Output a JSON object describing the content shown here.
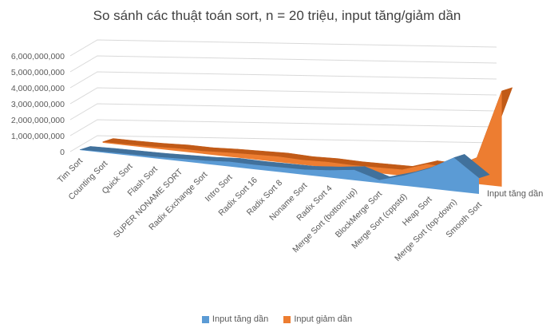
{
  "chart_data": {
    "type": "area",
    "title": "So sánh các thuật toán sort, n = 20 triệu, input tăng/giảm dần",
    "categories": [
      "Tim Sort",
      "Counting Sort",
      "Quick Sort",
      "Flash Sort",
      "SUPER NONAME SORT",
      "Radix Exchange Sort",
      "Intro Sort",
      "Radix Sort 16",
      "Radix Sort 8",
      "Noname Sort",
      "Radix Sort 4",
      "Merge Sort (bottom-up)",
      "BlockMerge Sort",
      "Merge Sort (cppstd)",
      "Heap Sort",
      "Merge Sort (top-down)",
      "Smooth Sort"
    ],
    "y_ticks": [
      "0",
      "1,000,000,000",
      "2,000,000,000",
      "3,000,000,000",
      "4,000,000,000",
      "5,000,000,000",
      "6,000,000,000"
    ],
    "ylim": [
      0,
      6000000000
    ],
    "series": [
      {
        "name": "Input tăng dần",
        "color": "#5b9bd5",
        "values": [
          20000000,
          60000000,
          80000000,
          100000000,
          150000000,
          200000000,
          300000000,
          280000000,
          300000000,
          320000000,
          450000000,
          650000000,
          180000000,
          650000000,
          1250000000,
          2100000000,
          1000000000
        ]
      },
      {
        "name": "Input giảm dần",
        "color": "#ed7d31",
        "values": [
          60000000,
          70000000,
          100000000,
          170000000,
          170000000,
          250000000,
          300000000,
          350000000,
          300000000,
          350000000,
          320000000,
          350000000,
          380000000,
          900000000,
          850000000,
          1650000000,
          6000000000
        ]
      }
    ],
    "series_label": "Input tăng dần",
    "legend_position": "bottom",
    "grid": true
  }
}
